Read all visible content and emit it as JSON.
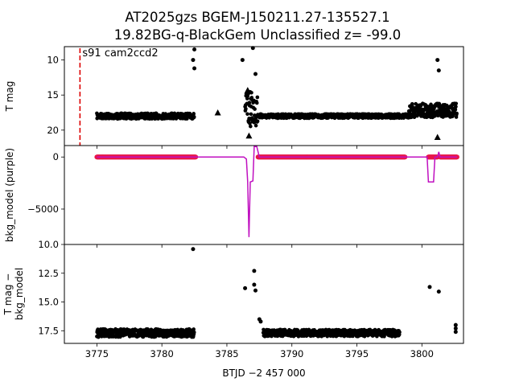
{
  "title_line1": "AT2025gzs  BGEM-J150211.27-135527.1",
  "title_line2": "19.82BG-q-BlackGem Unclassified z= -99.0",
  "xlabel": "BTJD −2 457 000",
  "colors": {
    "black": "#000000",
    "marker": "#e8174a",
    "purple": "#c010c0",
    "dashed": "#dd0000"
  },
  "chart_data": [
    {
      "type": "scatter",
      "panel": "top",
      "ylabel": "T mag",
      "annotation": "s91 cam2ccd2",
      "xlim": [
        3772.5,
        3803.2
      ],
      "ylim": [
        22.2,
        8.1
      ],
      "inverted_y": true,
      "xticks": [
        3775,
        3780,
        3785,
        3790,
        3795,
        3800
      ],
      "yticks": [
        10,
        15,
        20
      ],
      "vline_x": 3773.7,
      "segments": [
        {
          "x0": 3775.0,
          "x1": 3782.5,
          "y_base": 18.0,
          "y_scatter": 0.4
        },
        {
          "x0": 3786.4,
          "x1": 3787.4,
          "y_base": 17.0,
          "y_scatter": 2.5
        },
        {
          "x0": 3787.5,
          "x1": 3799.0,
          "y_base": 18.0,
          "y_scatter": 0.3
        },
        {
          "x0": 3799.0,
          "x1": 3802.7,
          "y_base": 17.2,
          "y_scatter": 1.0
        }
      ],
      "points": [
        {
          "x": 3782.5,
          "y": 8.5
        },
        {
          "x": 3782.4,
          "y": 10.0
        },
        {
          "x": 3782.5,
          "y": 11.2
        },
        {
          "x": 3786.2,
          "y": 10.0
        },
        {
          "x": 3787.0,
          "y": 8.3
        },
        {
          "x": 3787.2,
          "y": 12.0
        },
        {
          "x": 3801.2,
          "y": 10.0
        },
        {
          "x": 3801.3,
          "y": 11.5
        }
      ],
      "triangles": [
        {
          "x": 3784.3,
          "y": 17.5
        },
        {
          "x": 3786.6,
          "y": 14.3
        },
        {
          "x": 3786.7,
          "y": 20.8
        },
        {
          "x": 3800.5,
          "y": 17.2
        },
        {
          "x": 3801.2,
          "y": 21.0
        },
        {
          "x": 3801.4,
          "y": 16.5
        }
      ]
    },
    {
      "type": "line",
      "panel": "middle",
      "ylabel": "bkg_model (purple)",
      "xlim": [
        3772.5,
        3803.2
      ],
      "ylim": [
        -8400,
        1100
      ],
      "yticks": [
        0,
        -5000
      ],
      "ytick_labels": [
        "0",
        "−5000"
      ],
      "line": [
        [
          3775.0,
          0
        ],
        [
          3786.3,
          0
        ],
        [
          3786.5,
          -200
        ],
        [
          3786.6,
          -2400
        ],
        [
          3786.7,
          -7700
        ],
        [
          3786.8,
          -2400
        ],
        [
          3787.0,
          -2300
        ],
        [
          3787.1,
          1000
        ],
        [
          3787.3,
          1000
        ],
        [
          3787.5,
          0
        ],
        [
          3800.4,
          0
        ],
        [
          3800.5,
          -2400
        ],
        [
          3800.9,
          -2400
        ],
        [
          3801.0,
          0
        ],
        [
          3801.2,
          0
        ],
        [
          3801.3,
          500
        ],
        [
          3801.4,
          0
        ],
        [
          3802.7,
          0
        ]
      ],
      "marker_ranges": [
        [
          3775.0,
          3782.6
        ],
        [
          3787.4,
          3798.7
        ],
        [
          3800.5,
          3801.2
        ],
        [
          3801.4,
          3802.7
        ]
      ]
    },
    {
      "type": "scatter",
      "panel": "bottom",
      "ylabel": "T mag −\nbkg_model",
      "xlim": [
        3772.5,
        3803.2
      ],
      "ylim": [
        18.6,
        10.0
      ],
      "inverted_y": true,
      "yticks": [
        10.0,
        12.5,
        15.0,
        17.5
      ],
      "ytick_labels": [
        "10.0",
        "12.5",
        "15.0",
        "17.5"
      ],
      "segments": [
        {
          "x0": 3775.0,
          "x1": 3782.5,
          "y_base": 17.7,
          "y_scatter": 0.35
        },
        {
          "x0": 3787.8,
          "x1": 3798.3,
          "y_base": 17.7,
          "y_scatter": 0.3
        }
      ],
      "points": [
        {
          "x": 3782.4,
          "y": 10.4
        },
        {
          "x": 3786.4,
          "y": 13.8
        },
        {
          "x": 3787.1,
          "y": 12.3
        },
        {
          "x": 3787.1,
          "y": 13.5
        },
        {
          "x": 3787.2,
          "y": 14.0
        },
        {
          "x": 3787.5,
          "y": 16.5
        },
        {
          "x": 3787.6,
          "y": 16.7
        },
        {
          "x": 3800.6,
          "y": 13.7
        },
        {
          "x": 3801.3,
          "y": 14.1
        },
        {
          "x": 3802.6,
          "y": 17.0
        },
        {
          "x": 3802.6,
          "y": 17.3
        },
        {
          "x": 3802.6,
          "y": 17.6
        }
      ]
    }
  ]
}
